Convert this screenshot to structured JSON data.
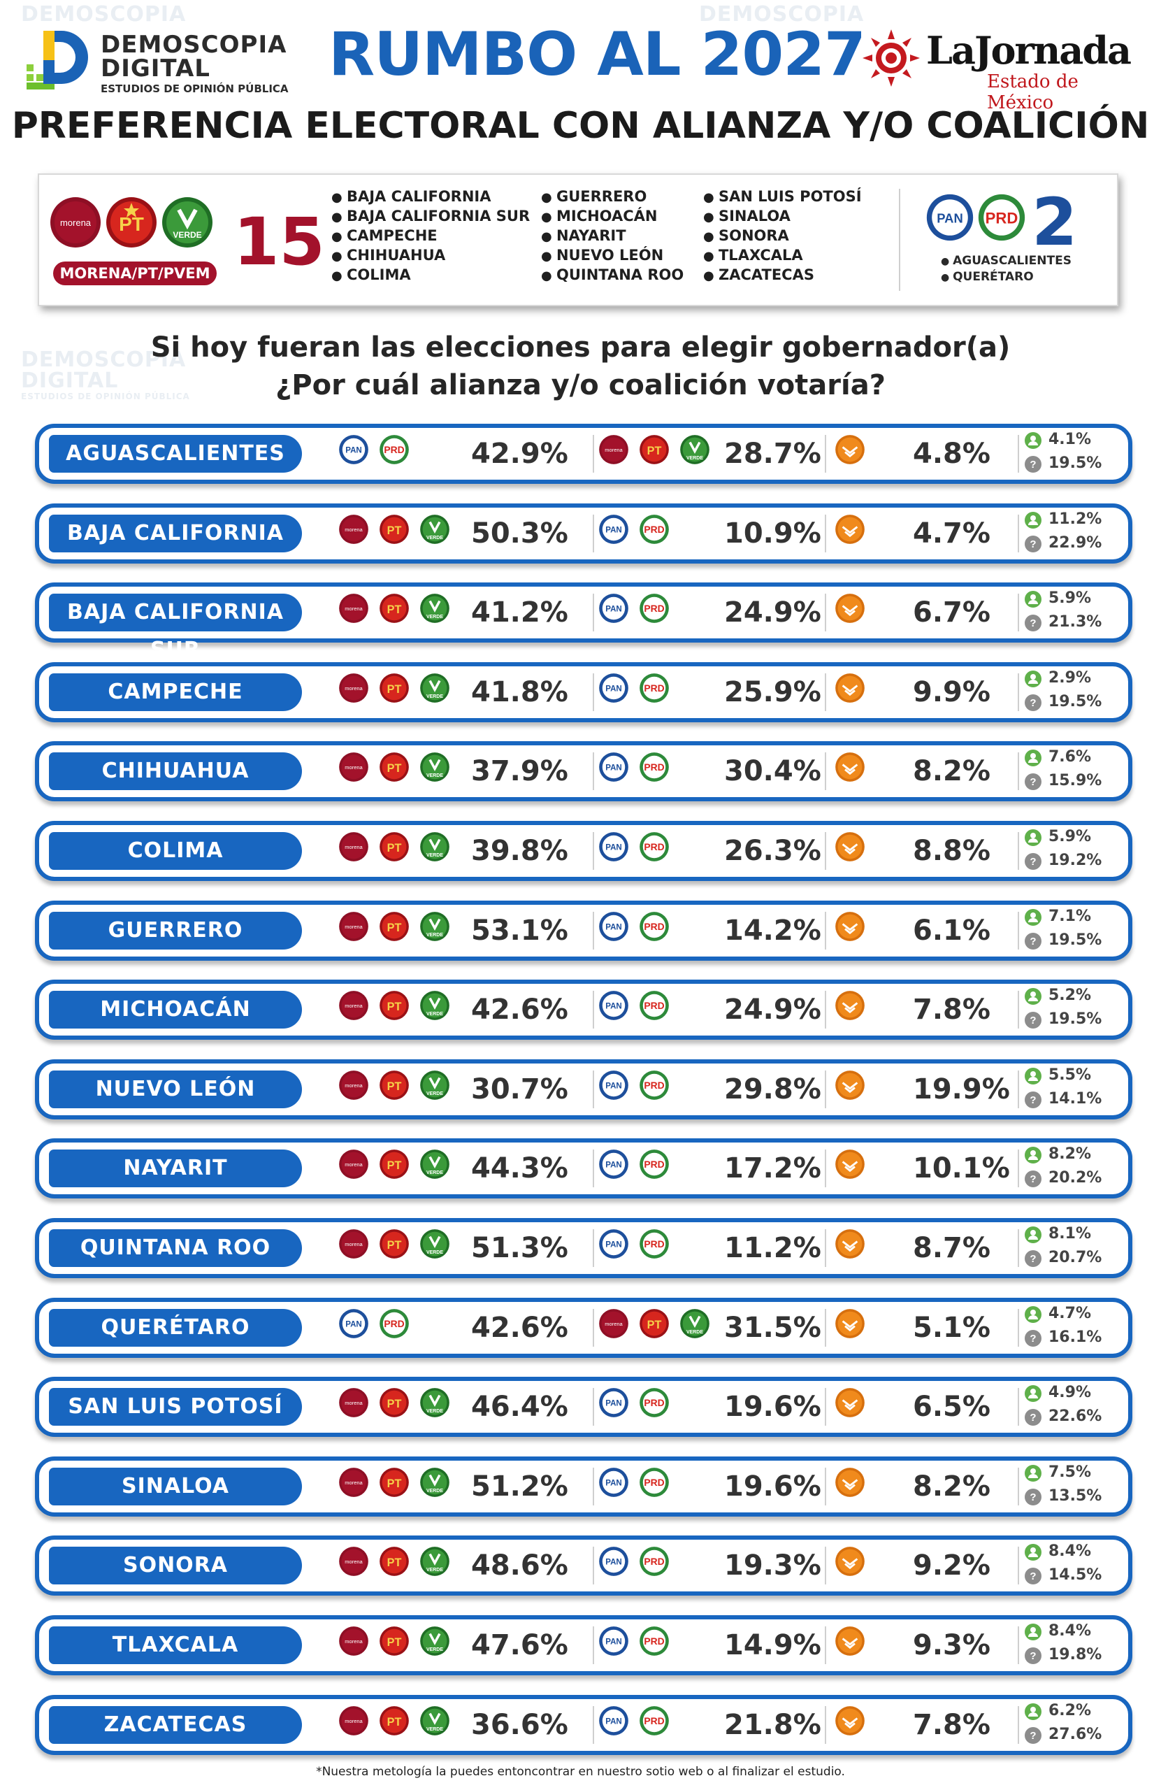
{
  "header": {
    "brand_line1": "DEMOSCOPIA",
    "brand_line2": "DIGITAL",
    "brand_tagline": "ESTUDIOS DE OPINIÓN PÚBLICA",
    "title": "RUMBO AL 2027",
    "newspaper": "LaJornada",
    "newspaper_sub": "Estado de México",
    "subtitle": "PREFERENCIA ELECTORAL CON ALIANZA Y/O COALICIÓN"
  },
  "summary": {
    "coalition_label": "MORENA/PT/PVEM",
    "coalition_count": "15",
    "states_col1": [
      "BAJA CALIFORNIA",
      "BAJA CALIFORNIA SUR",
      "CAMPECHE",
      "CHIHUAHUA",
      "COLIMA"
    ],
    "states_col2": [
      "GUERRERO",
      "MICHOACÁN",
      "NAYARIT",
      "NUEVO LEÓN",
      "QUINTANA ROO"
    ],
    "states_col3": [
      "SAN LUIS POTOSÍ",
      "SINALOA",
      "SONORA",
      "TLAXCALA",
      "ZACATECAS"
    ],
    "opposition_count": "2",
    "opposition_states": [
      "AGUASCALIENTES",
      "QUERÉTARO"
    ]
  },
  "question": {
    "line1": "Si hoy fueran las elecciones para elegir gobernador(a)",
    "line2": "¿Por cuál alianza y/o coalición votaría?"
  },
  "party_logos": {
    "morena": "morena",
    "pt": "PT",
    "verde": "VERDE",
    "pan": "PAN",
    "prd": "PRD"
  },
  "colors": {
    "blue": "#1866c0",
    "morena": "#a3122b",
    "pt": "#d7261e",
    "verde": "#3b9a3a",
    "pan": "#1d4f9c",
    "mc": "#f08a1c"
  },
  "rows": [
    {
      "state": "AGUASCALIENTES",
      "first": "pan-prd",
      "a": "42.9%",
      "b": "28.7%",
      "mc": "4.8%",
      "other": "4.1%",
      "none": "19.5%"
    },
    {
      "state": "BAJA CALIFORNIA",
      "first": "morena",
      "a": "50.3%",
      "b": "10.9%",
      "mc": "4.7%",
      "other": "11.2%",
      "none": "22.9%"
    },
    {
      "state": "BAJA CALIFORNIA SUR",
      "first": "morena",
      "a": "41.2%",
      "b": "24.9%",
      "mc": "6.7%",
      "other": "5.9%",
      "none": "21.3%"
    },
    {
      "state": "CAMPECHE",
      "first": "morena",
      "a": "41.8%",
      "b": "25.9%",
      "mc": "9.9%",
      "other": "2.9%",
      "none": "19.5%"
    },
    {
      "state": "CHIHUAHUA",
      "first": "morena",
      "a": "37.9%",
      "b": "30.4%",
      "mc": "8.2%",
      "other": "7.6%",
      "none": "15.9%"
    },
    {
      "state": "COLIMA",
      "first": "morena",
      "a": "39.8%",
      "b": "26.3%",
      "mc": "8.8%",
      "other": "5.9%",
      "none": "19.2%"
    },
    {
      "state": "GUERRERO",
      "first": "morena",
      "a": "53.1%",
      "b": "14.2%",
      "mc": "6.1%",
      "other": "7.1%",
      "none": "19.5%"
    },
    {
      "state": "MICHOACÁN",
      "first": "morena",
      "a": "42.6%",
      "b": "24.9%",
      "mc": "7.8%",
      "other": "5.2%",
      "none": "19.5%"
    },
    {
      "state": "NUEVO LEÓN",
      "first": "morena",
      "a": "30.7%",
      "b": "29.8%",
      "mc": "19.9%",
      "other": "5.5%",
      "none": "14.1%"
    },
    {
      "state": "NAYARIT",
      "first": "morena",
      "a": "44.3%",
      "b": "17.2%",
      "mc": "10.1%",
      "other": "8.2%",
      "none": "20.2%"
    },
    {
      "state": "QUINTANA ROO",
      "first": "morena",
      "a": "51.3%",
      "b": "11.2%",
      "mc": "8.7%",
      "other": "8.1%",
      "none": "20.7%"
    },
    {
      "state": "QUERÉTARO",
      "first": "pan-prd",
      "a": "42.6%",
      "b": "31.5%",
      "mc": "5.1%",
      "other": "4.7%",
      "none": "16.1%"
    },
    {
      "state": "SAN LUIS POTOSÍ",
      "first": "morena",
      "a": "46.4%",
      "b": "19.6%",
      "mc": "6.5%",
      "other": "4.9%",
      "none": "22.6%"
    },
    {
      "state": "SINALOA",
      "first": "morena",
      "a": "51.2%",
      "b": "19.6%",
      "mc": "8.2%",
      "other": "7.5%",
      "none": "13.5%"
    },
    {
      "state": "SONORA",
      "first": "morena",
      "a": "48.6%",
      "b": "19.3%",
      "mc": "9.2%",
      "other": "8.4%",
      "none": "14.5%"
    },
    {
      "state": "TLAXCALA",
      "first": "morena",
      "a": "47.6%",
      "b": "14.9%",
      "mc": "9.3%",
      "other": "8.4%",
      "none": "19.8%"
    },
    {
      "state": "ZACATECAS",
      "first": "morena",
      "a": "36.6%",
      "b": "21.8%",
      "mc": "7.8%",
      "other": "6.2%",
      "none": "27.6%"
    }
  ],
  "footnote": "*Nuestra metología la puedes entoncontrar en nuestro sotio web o al finalizar el estudio."
}
